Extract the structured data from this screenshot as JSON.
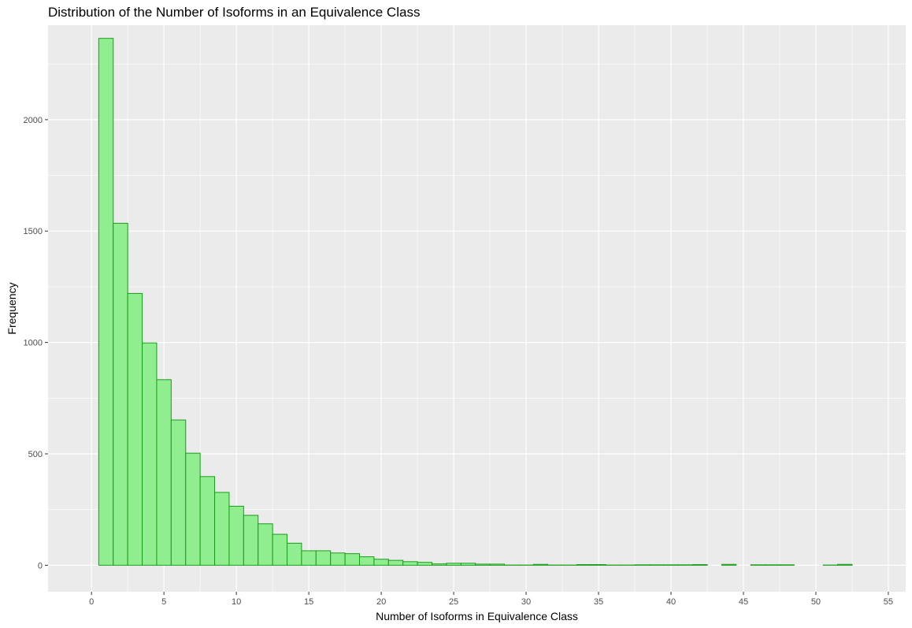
{
  "chart_data": {
    "type": "bar",
    "title": "Distribution of the Number of Isoforms in an Equivalence Class",
    "xlabel": "Number of Isoforms in Equivalence Class",
    "ylabel": "Frequency",
    "xlim": [
      -3,
      56.2
    ],
    "ylim": [
      -119,
      2424
    ],
    "x_ticks": [
      0,
      5,
      10,
      15,
      20,
      25,
      30,
      35,
      40,
      45,
      50,
      55
    ],
    "y_ticks": [
      0,
      500,
      1000,
      1500,
      2000
    ],
    "bin_width": 1,
    "bins_x": [
      0,
      1,
      2,
      3,
      4,
      5,
      6,
      7,
      8,
      9,
      10,
      11,
      12,
      13,
      14,
      15,
      16,
      17,
      18,
      19,
      20,
      21,
      22,
      23,
      24,
      25,
      26,
      27,
      28,
      29,
      30,
      31,
      32,
      33,
      34,
      35,
      36,
      37,
      38,
      39,
      40,
      41,
      42,
      43,
      44,
      45,
      46,
      47,
      48,
      49,
      50,
      51,
      52,
      53,
      54
    ],
    "values": [
      0,
      2365,
      1535,
      1220,
      998,
      833,
      652,
      503,
      398,
      327,
      265,
      224,
      186,
      139,
      99,
      65,
      65,
      55,
      52,
      38,
      27,
      22,
      16,
      13,
      6,
      9,
      9,
      5,
      5,
      1,
      1,
      4,
      1,
      1,
      3,
      3,
      1,
      1,
      2,
      2,
      2,
      2,
      3,
      0,
      4,
      0,
      2,
      2,
      2,
      0,
      0,
      1,
      4,
      0,
      0
    ],
    "colors": {
      "bar_fill": "#90ee90",
      "bar_stroke": "#1a9c1a",
      "panel_bg": "#ebebeb",
      "grid": "#ffffff"
    }
  }
}
